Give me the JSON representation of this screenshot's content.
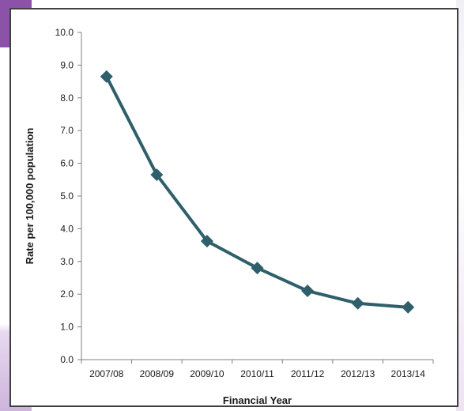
{
  "chart_data": {
    "type": "line",
    "title": "",
    "xlabel": "Financial Year",
    "ylabel": "Rate per 100,000 population",
    "categories": [
      "2007/08",
      "2008/09",
      "2009/10",
      "2010/11",
      "2011/12",
      "2012/13",
      "2013/14"
    ],
    "series": [
      {
        "values": [
          8.65,
          5.65,
          3.62,
          2.8,
          2.1,
          1.72,
          1.6
        ],
        "color": "#2e5f6a",
        "marker": "diamond"
      }
    ],
    "ylim": [
      0,
      10
    ],
    "yticks": [
      "0.0",
      "1.0",
      "2.0",
      "3.0",
      "4.0",
      "5.0",
      "6.0",
      "7.0",
      "8.0",
      "9.0",
      "10.0"
    ],
    "grid": false,
    "legend": "none"
  }
}
